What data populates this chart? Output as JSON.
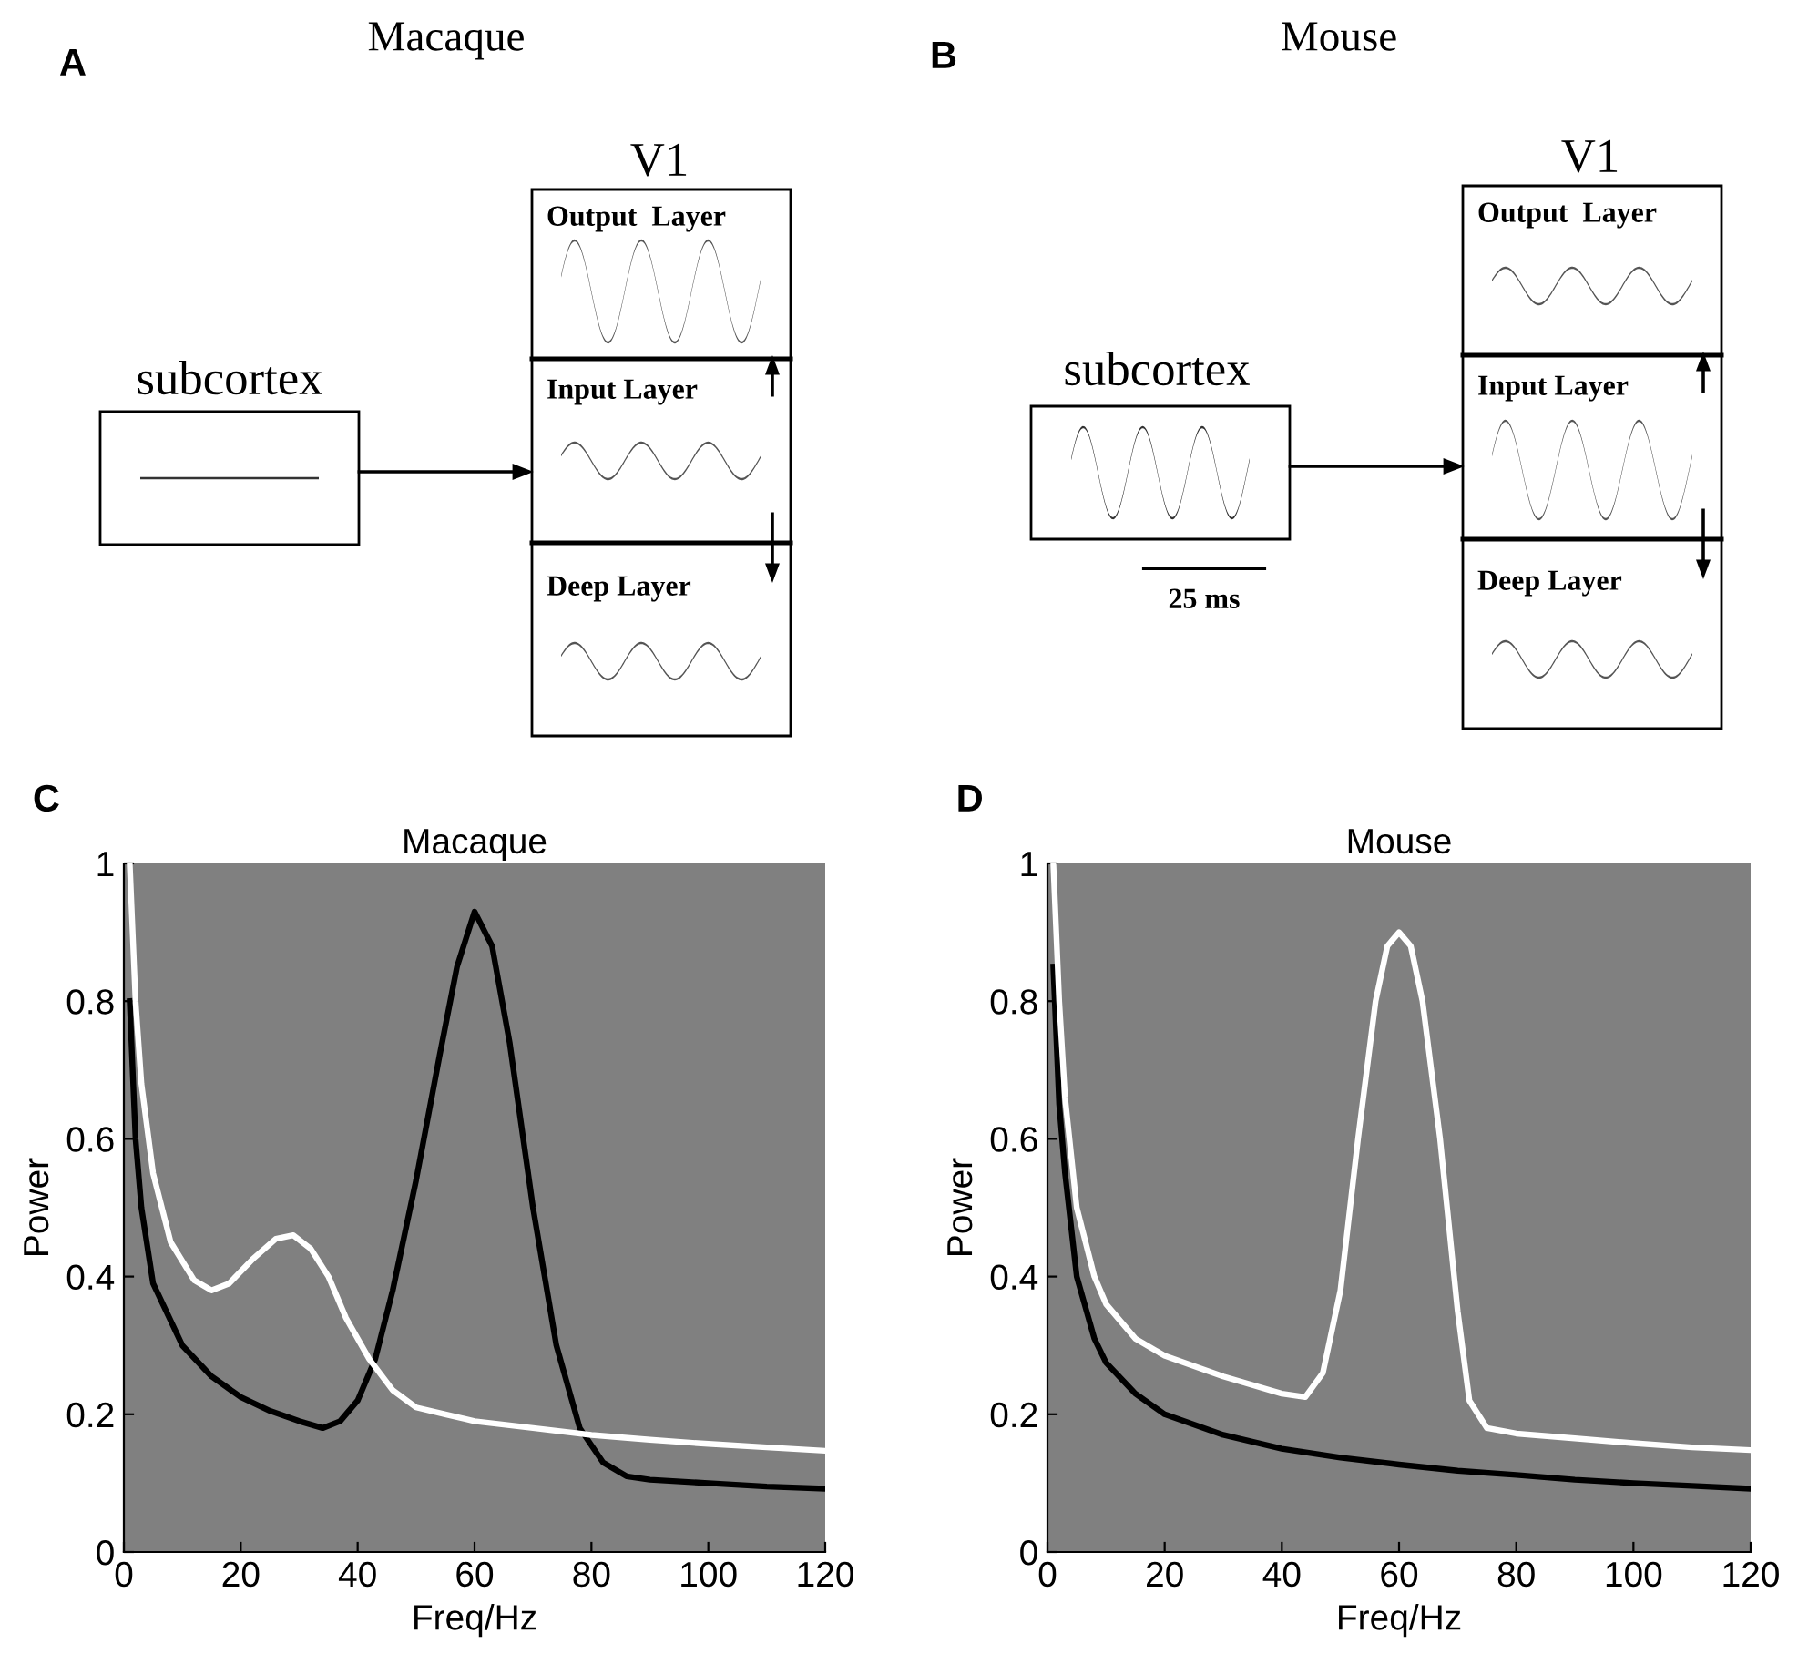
{
  "chart_data": [
    {
      "type": "other",
      "title": "Macaque",
      "annotations": [
        "A",
        "V1",
        "Output  Layer",
        "Input Layer",
        "Deep Layer",
        "subcortex"
      ]
    },
    {
      "type": "other",
      "title": "Mouse",
      "annotations": [
        "B",
        "V1",
        "Output  Layer",
        "Input Layer",
        "Deep Layer",
        "subcortex",
        "25 ms"
      ]
    },
    {
      "type": "line",
      "title": "Macaque",
      "xlabel": "Freq/Hz",
      "ylabel": "Power",
      "annotations": [
        "C"
      ],
      "xlim": [
        0,
        120
      ],
      "ylim": [
        0,
        1
      ],
      "xticks": [
        0,
        20,
        40,
        60,
        80,
        100,
        120
      ],
      "yticks": [
        0,
        0.2,
        0.4,
        0.6,
        0.8,
        1
      ],
      "grid": false,
      "legend": false,
      "series": [
        {
          "color": "#000000",
          "x": [
            1,
            2,
            3,
            5,
            10,
            15,
            20,
            25,
            30,
            34,
            37,
            40,
            43,
            46,
            50,
            54,
            57,
            60,
            63,
            66,
            70,
            74,
            78,
            82,
            86,
            90,
            100,
            110,
            120
          ],
          "values": [
            0.8,
            0.6,
            0.5,
            0.39,
            0.3,
            0.255,
            0.225,
            0.205,
            0.19,
            0.18,
            0.19,
            0.22,
            0.28,
            0.38,
            0.54,
            0.72,
            0.85,
            0.93,
            0.88,
            0.74,
            0.5,
            0.3,
            0.18,
            0.13,
            0.11,
            0.105,
            0.1,
            0.095,
            0.092
          ]
        },
        {
          "color": "#ffffff",
          "x": [
            1,
            2,
            3,
            5,
            8,
            12,
            15,
            18,
            22,
            26,
            29,
            32,
            35,
            38,
            42,
            46,
            50,
            55,
            60,
            70,
            80,
            90,
            100,
            110,
            120
          ],
          "values": [
            1.0,
            0.8,
            0.68,
            0.55,
            0.45,
            0.395,
            0.38,
            0.39,
            0.425,
            0.455,
            0.46,
            0.44,
            0.4,
            0.34,
            0.28,
            0.235,
            0.21,
            0.2,
            0.19,
            0.18,
            0.17,
            0.163,
            0.157,
            0.152,
            0.147
          ]
        }
      ]
    },
    {
      "type": "line",
      "title": "Mouse",
      "xlabel": "Freq/Hz",
      "ylabel": "Power",
      "annotations": [
        "D"
      ],
      "xlim": [
        0,
        120
      ],
      "ylim": [
        0,
        1
      ],
      "xticks": [
        0,
        20,
        40,
        60,
        80,
        100,
        120
      ],
      "yticks": [
        0,
        0.2,
        0.4,
        0.6,
        0.8,
        1
      ],
      "grid": false,
      "legend": false,
      "series": [
        {
          "color": "#000000",
          "x": [
            1,
            2,
            3,
            5,
            8,
            10,
            15,
            20,
            30,
            40,
            50,
            60,
            70,
            80,
            90,
            100,
            110,
            120
          ],
          "values": [
            0.85,
            0.65,
            0.55,
            0.4,
            0.31,
            0.275,
            0.23,
            0.2,
            0.17,
            0.15,
            0.137,
            0.127,
            0.118,
            0.112,
            0.105,
            0.1,
            0.096,
            0.092
          ]
        },
        {
          "color": "#ffffff",
          "x": [
            1,
            2,
            3,
            5,
            8,
            10,
            15,
            20,
            30,
            40,
            44,
            47,
            50,
            53,
            56,
            58,
            60,
            62,
            64,
            67,
            70,
            72,
            75,
            80,
            90,
            100,
            110,
            120
          ],
          "values": [
            1.0,
            0.8,
            0.66,
            0.5,
            0.4,
            0.36,
            0.31,
            0.285,
            0.255,
            0.23,
            0.225,
            0.26,
            0.38,
            0.6,
            0.8,
            0.88,
            0.9,
            0.88,
            0.8,
            0.6,
            0.35,
            0.22,
            0.18,
            0.172,
            0.165,
            0.158,
            0.152,
            0.148
          ]
        }
      ]
    }
  ]
}
